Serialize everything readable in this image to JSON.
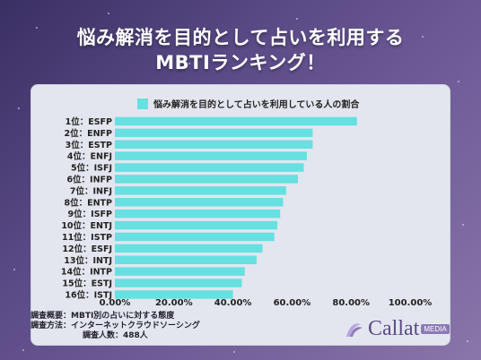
{
  "title_lines": [
    "悩み解消を目的として占いを利用する",
    "MBTIランキング！"
  ],
  "chart_data": {
    "type": "bar",
    "orientation": "horizontal",
    "legend": "悩み解消を目的として占いを利用している人の割合",
    "legend_position": "top",
    "categories": [
      "1位：ESFP",
      "2位：ENFP",
      "3位：ESTP",
      "4位：ENFJ",
      "5位：ISFJ",
      "6位：INFP",
      "7位：INFJ",
      "8位：ENTP",
      "9位：ISFP",
      "10位：ENTJ",
      "11位：ISTP",
      "12位：ESFJ",
      "13位：INTJ",
      "14位：INTP",
      "15位：ESTJ",
      "16位：ISTJ"
    ],
    "values": [
      0.82,
      0.67,
      0.67,
      0.65,
      0.64,
      0.62,
      0.58,
      0.57,
      0.56,
      0.55,
      0.54,
      0.5,
      0.48,
      0.44,
      0.43,
      0.4
    ],
    "xlim": [
      0,
      1
    ],
    "xticks": [
      "0.00%",
      "20.00%",
      "40.00%",
      "60.00%",
      "80.00%",
      "100.00%"
    ],
    "bar_color": "#66e0e0",
    "grid": false
  },
  "footnotes": {
    "line1": "調査概要：MBTI別の占いに対する態度",
    "line2": "調査方法：インターネットクラウドソーシング",
    "line3": "調査人数：488人"
  },
  "logo": {
    "text": "Callat",
    "badge": "MEDIA"
  }
}
